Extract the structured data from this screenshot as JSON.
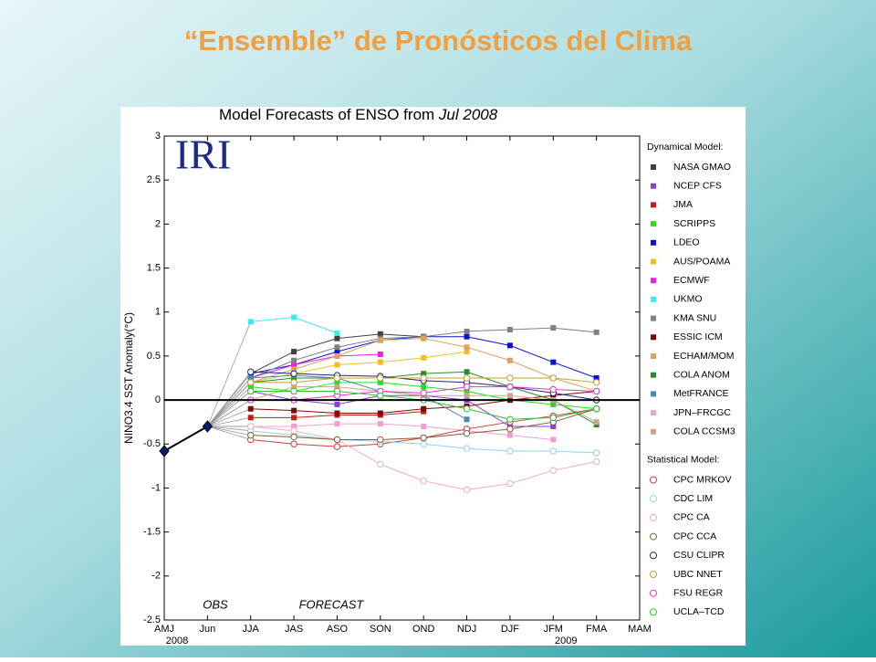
{
  "slide_title": "“Ensemble” de Pronósticos del Clima",
  "chart_data": {
    "type": "line",
    "title": "Model Forecasts of ENSO from",
    "title_date": "Jul 2008",
    "logo": "IRI",
    "y_label": "NINO3.4 SST Anomaly(°C)",
    "annotations": [
      "OBS",
      "FORECAST"
    ],
    "categories": [
      "AMJ",
      "Jun",
      "JJA",
      "JAS",
      "ASO",
      "SON",
      "OND",
      "NDJ",
      "DJF",
      "JFM",
      "FMA",
      "MAM"
    ],
    "years": [
      {
        "label": "2008",
        "category": 0
      },
      {
        "label": "2009",
        "category": 9
      }
    ],
    "ylim": [
      -2.5,
      3
    ],
    "yticks": [
      -2.5,
      -2,
      -1.5,
      -1,
      -0.5,
      0,
      0.5,
      1,
      1.5,
      2,
      2.5,
      3
    ],
    "zero_line": true,
    "observed": {
      "color": "#0a1a6e",
      "values": [
        -0.58,
        -0.3,
        null,
        null,
        null,
        null,
        null,
        null,
        null,
        null,
        null,
        null
      ]
    },
    "groups": [
      {
        "title": "Dynamical Model:",
        "marker": "square",
        "series": [
          {
            "name": "NASA GMAO",
            "color": "#404040",
            "values": [
              null,
              null,
              0.3,
              0.55,
              0.7,
              0.75,
              0.72,
              null,
              null,
              null,
              null,
              null
            ]
          },
          {
            "name": "NCEP CFS",
            "color": "#8a3fd0",
            "values": [
              null,
              null,
              0.1,
              0.0,
              -0.05,
              0.05,
              0.05,
              0.0,
              -0.3,
              -0.3,
              null,
              null
            ]
          },
          {
            "name": "JMA",
            "color": "#d01818",
            "values": [
              null,
              null,
              -0.2,
              -0.2,
              -0.17,
              -0.17,
              -0.13,
              null,
              null,
              null,
              null,
              null
            ]
          },
          {
            "name": "SCRIPPS",
            "color": "#20e020",
            "values": [
              null,
              null,
              0.15,
              0.1,
              0.2,
              0.2,
              0.15,
              0.1,
              0.0,
              -0.05,
              -0.1,
              null
            ]
          },
          {
            "name": "LDEO",
            "color": "#0a10d8",
            "values": [
              null,
              null,
              0.3,
              0.4,
              0.55,
              0.68,
              0.72,
              0.72,
              0.62,
              0.43,
              0.25,
              null
            ]
          },
          {
            "name": "AUS/POAMA",
            "color": "#f0c020",
            "values": [
              null,
              null,
              0.2,
              0.3,
              0.4,
              0.43,
              0.48,
              0.55,
              null,
              null,
              null,
              null
            ]
          },
          {
            "name": "ECMWF",
            "color": "#f020e0",
            "values": [
              null,
              null,
              0.25,
              0.4,
              0.5,
              0.52,
              null,
              null,
              null,
              null,
              null,
              null
            ]
          },
          {
            "name": "UKMO",
            "color": "#30f0f0",
            "values": [
              null,
              null,
              0.89,
              0.94,
              0.76,
              null,
              null,
              null,
              null,
              null,
              null,
              null
            ]
          },
          {
            "name": "KMA SNU",
            "color": "#808080",
            "values": [
              null,
              null,
              0.25,
              0.45,
              0.6,
              0.7,
              0.72,
              0.78,
              0.8,
              0.82,
              0.77,
              null
            ]
          },
          {
            "name": "ESSIC ICM",
            "color": "#7a0a0a",
            "values": [
              null,
              null,
              -0.1,
              -0.12,
              -0.15,
              -0.15,
              -0.1,
              -0.07,
              0.0,
              0.05,
              0.1,
              null
            ]
          },
          {
            "name": "ECHAM/MOM",
            "color": "#e0a060",
            "values": [
              null,
              null,
              0.2,
              0.35,
              0.5,
              0.68,
              0.7,
              0.6,
              0.45,
              0.25,
              0.1,
              null
            ]
          },
          {
            "name": "COLA ANOM",
            "color": "#2a8a2a",
            "values": [
              null,
              null,
              0.2,
              0.25,
              0.25,
              0.25,
              0.3,
              0.32,
              0.15,
              0.0,
              -0.28,
              null
            ]
          },
          {
            "name": "MetFRANCE",
            "color": "#4a8ab0",
            "values": [
              null,
              null,
              0.25,
              0.28,
              0.25,
              0.1,
              0.05,
              -0.22,
              null,
              null,
              null,
              null
            ]
          },
          {
            "name": "JPN–FRCGC",
            "color": "#f0a0d0",
            "values": [
              null,
              null,
              -0.3,
              -0.3,
              -0.27,
              -0.27,
              -0.3,
              -0.35,
              -0.4,
              -0.45,
              null,
              null
            ]
          },
          {
            "name": "COLA CCSM3",
            "color": "#c8a890",
            "values": [
              null,
              null,
              0.0,
              0.15,
              0.15,
              0.1,
              0.05,
              0.05,
              0.05,
              0.0,
              -0.25,
              null
            ]
          }
        ]
      },
      {
        "title": "Statistical Model:",
        "marker": "circle",
        "series": [
          {
            "name": "CPC MRKOV",
            "color": "#c84040",
            "values": [
              null,
              null,
              -0.45,
              -0.5,
              -0.53,
              -0.5,
              -0.43,
              -0.33,
              -0.25,
              -0.18,
              -0.1,
              null
            ]
          },
          {
            "name": "CDC LIM",
            "color": "#90d0f0",
            "values": [
              null,
              null,
              -0.35,
              -0.4,
              -0.45,
              -0.47,
              -0.5,
              -0.55,
              -0.58,
              -0.58,
              -0.6,
              null
            ]
          },
          {
            "name": "CPC CA",
            "color": "#f0b0b0",
            "values": [
              null,
              null,
              -0.3,
              -0.35,
              -0.45,
              -0.73,
              -0.92,
              -1.02,
              -0.95,
              -0.8,
              -0.7,
              null
            ]
          },
          {
            "name": "CPC CCA",
            "color": "#8a5a3a",
            "values": [
              null,
              null,
              -0.4,
              -0.42,
              -0.45,
              -0.45,
              -0.43,
              -0.38,
              -0.33,
              -0.25,
              -0.1,
              null
            ]
          },
          {
            "name": "CSU CLIPR",
            "color": "#202080",
            "values": [
              null,
              null,
              0.32,
              0.3,
              0.28,
              0.27,
              0.22,
              0.2,
              0.15,
              0.08,
              0.0,
              null
            ]
          },
          {
            "name": "UBC NNET",
            "color": "#c0a030",
            "values": [
              null,
              null,
              0.2,
              0.2,
              0.25,
              0.25,
              0.25,
              0.25,
              0.25,
              0.25,
              0.2,
              null
            ]
          },
          {
            "name": "FSU REGR",
            "color": "#e030d0",
            "values": [
              null,
              null,
              0.0,
              0.0,
              0.05,
              0.1,
              0.08,
              0.15,
              0.15,
              0.12,
              0.1,
              null
            ]
          },
          {
            "name": "UCLA–TCD",
            "color": "#30c030",
            "values": [
              null,
              null,
              0.1,
              0.1,
              0.1,
              0.05,
              0.0,
              -0.1,
              -0.22,
              -0.2,
              -0.1,
              null
            ]
          }
        ]
      }
    ]
  }
}
